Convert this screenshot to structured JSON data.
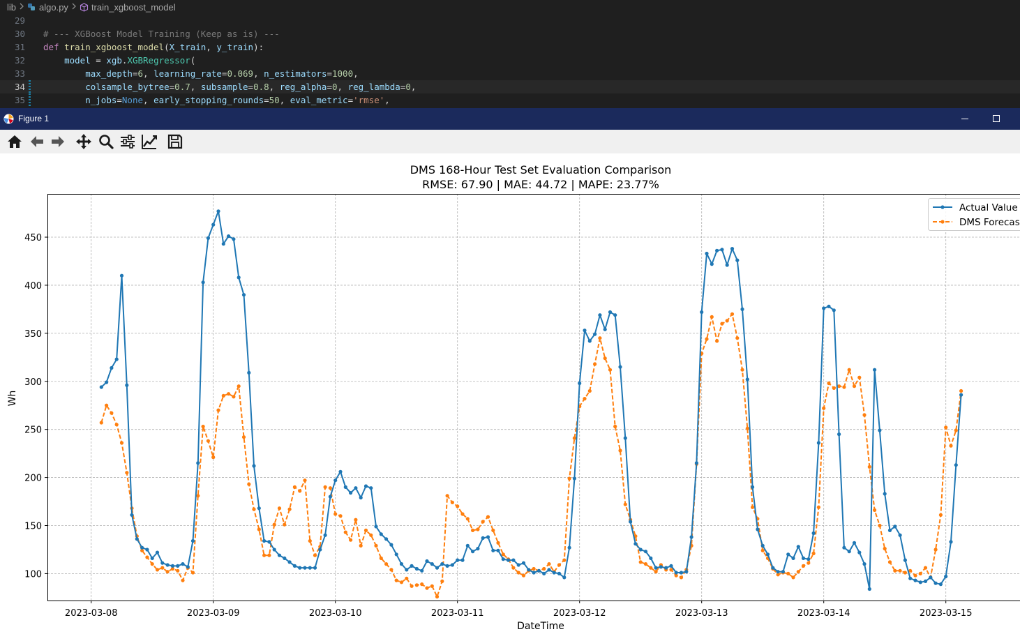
{
  "editor": {
    "breadcrumb": [
      "lib",
      "algo.py",
      "train_xgboost_model"
    ],
    "lines": [
      {
        "num": "29",
        "tokens": []
      },
      {
        "num": "30",
        "tokens": [
          [
            "t-cmtgray",
            "# --- XGBoost Model Training (Keep as is) ---"
          ]
        ]
      },
      {
        "num": "31",
        "tokens": [
          [
            "t-def",
            "def "
          ],
          [
            "t-fn",
            "train_xgboost_model"
          ],
          [
            "t-plain",
            "("
          ],
          [
            "t-param",
            "X_train"
          ],
          [
            "t-plain",
            ", "
          ],
          [
            "t-param",
            "y_train"
          ],
          [
            "t-plain",
            "):"
          ]
        ]
      },
      {
        "num": "32",
        "tokens": [
          [
            "t-plain",
            "    "
          ],
          [
            "t-param",
            "model"
          ],
          [
            "t-plain",
            " = "
          ],
          [
            "t-param",
            "xgb"
          ],
          [
            "t-plain",
            "."
          ],
          [
            "t-cls",
            "XGBRegressor"
          ],
          [
            "t-plain",
            "("
          ]
        ]
      },
      {
        "num": "33",
        "tokens": [
          [
            "t-plain",
            "        "
          ],
          [
            "t-kwarg",
            "max_depth"
          ],
          [
            "t-plain",
            "="
          ],
          [
            "t-num",
            "6"
          ],
          [
            "t-plain",
            ", "
          ],
          [
            "t-kwarg",
            "learning_rate"
          ],
          [
            "t-plain",
            "="
          ],
          [
            "t-num",
            "0.069"
          ],
          [
            "t-plain",
            ", "
          ],
          [
            "t-kwarg",
            "n_estimators"
          ],
          [
            "t-plain",
            "="
          ],
          [
            "t-num",
            "1000"
          ],
          [
            "t-plain",
            ","
          ]
        ]
      },
      {
        "num": "34",
        "active": true,
        "tokens": [
          [
            "t-plain",
            "        "
          ],
          [
            "t-kwarg",
            "colsample_bytree"
          ],
          [
            "t-plain",
            "="
          ],
          [
            "t-num",
            "0.7"
          ],
          [
            "t-plain",
            ", "
          ],
          [
            "t-kwarg",
            "subsample"
          ],
          [
            "t-plain",
            "="
          ],
          [
            "t-num",
            "0.8"
          ],
          [
            "t-plain",
            ", "
          ],
          [
            "t-kwarg",
            "reg_alpha"
          ],
          [
            "t-plain",
            "="
          ],
          [
            "t-num",
            "0"
          ],
          [
            "t-plain",
            ", "
          ],
          [
            "t-kwarg",
            "reg_lambda"
          ],
          [
            "t-plain",
            "="
          ],
          [
            "t-num",
            "0"
          ],
          [
            "t-plain",
            ","
          ]
        ]
      },
      {
        "num": "35",
        "tokens": [
          [
            "t-plain",
            "        "
          ],
          [
            "t-kwarg",
            "n_jobs"
          ],
          [
            "t-plain",
            "="
          ],
          [
            "t-kw",
            "None"
          ],
          [
            "t-plain",
            ", "
          ],
          [
            "t-kwarg",
            "early_stopping_rounds"
          ],
          [
            "t-plain",
            "="
          ],
          [
            "t-num",
            "50"
          ],
          [
            "t-plain",
            ", "
          ],
          [
            "t-kwarg",
            "eval_metric"
          ],
          [
            "t-plain",
            "="
          ],
          [
            "t-str",
            "'rmse'"
          ],
          [
            "t-plain",
            ","
          ]
        ]
      }
    ]
  },
  "figure": {
    "window_title": "Figure 1",
    "toolbar": [
      "home-icon",
      "back-icon",
      "forward-icon",
      "pan-icon",
      "zoom-icon",
      "configure-subplots-icon",
      "edit-axis-icon",
      "save-icon"
    ]
  },
  "colors": {
    "actual": "#1f77b4",
    "forecast": "#ff7f0e",
    "titlebar": "#1b2a5c"
  },
  "chart_data": {
    "type": "line",
    "title": "DMS 168-Hour Test Set Evaluation Comparison",
    "subtitle": "RMSE: 67.90 | MAE: 44.72 | MAPE: 23.77%",
    "xlabel": "DateTime",
    "ylabel": "Wh",
    "x_start": "2023-03-08T02:00",
    "x_step_hours": 1,
    "x_ticks": [
      "2023-03-08",
      "2023-03-09",
      "2023-03-10",
      "2023-03-11",
      "2023-03-12",
      "2023-03-13",
      "2023-03-14",
      "2023-03-15"
    ],
    "y_ticks": [
      100,
      150,
      200,
      250,
      300,
      350,
      400,
      450
    ],
    "ylim": [
      72,
      495
    ],
    "grid": true,
    "legend_position": "top-right",
    "series": [
      {
        "name": "Actual Value",
        "style": "solid",
        "values": [
          294,
          299,
          314,
          323,
          410,
          296,
          161,
          136,
          127,
          125,
          116,
          122,
          111,
          109,
          108,
          108,
          110,
          107,
          134,
          215,
          403,
          449,
          463,
          477,
          443,
          451,
          448,
          408,
          390,
          309,
          212,
          168,
          134,
          133,
          125,
          119,
          116,
          112,
          108,
          106,
          106,
          106,
          106,
          125,
          140,
          180,
          197,
          206,
          190,
          184,
          189,
          179,
          191,
          189,
          149,
          141,
          136,
          130,
          120,
          110,
          104,
          108,
          105,
          103,
          113,
          110,
          106,
          110,
          108,
          109,
          114,
          114,
          129,
          123,
          126,
          137,
          138,
          124,
          124,
          115,
          114,
          114,
          109,
          111,
          104,
          101,
          103,
          100,
          104,
          101,
          100,
          96,
          127,
          199,
          298,
          353,
          342,
          349,
          369,
          354,
          372,
          369,
          315,
          241,
          154,
          131,
          125,
          123,
          116,
          106,
          107,
          106,
          108,
          101,
          101,
          102,
          138,
          215,
          372,
          433,
          422,
          436,
          437,
          421,
          438,
          426,
          375,
          302,
          190,
          146,
          129,
          120,
          106,
          102,
          102,
          120,
          116,
          128,
          116,
          115,
          142,
          236,
          376,
          378,
          374,
          245,
          127,
          123,
          132,
          122,
          110,
          84,
          312,
          249,
          183,
          145,
          149,
          140,
          114,
          95,
          93,
          91,
          92,
          96,
          90,
          89,
          97,
          133,
          213,
          286
        ]
      },
      {
        "name": "DMS Forecast",
        "style": "dashed",
        "values": [
          257,
          275,
          267,
          255,
          236,
          205,
          168,
          139,
          124,
          117,
          110,
          104,
          106,
          102,
          105,
          103,
          93,
          106,
          101,
          181,
          253,
          238,
          221,
          270,
          285,
          287,
          284,
          295,
          242,
          193,
          167,
          146,
          119,
          119,
          151,
          168,
          151,
          167,
          190,
          186,
          197,
          134,
          119,
          128,
          190,
          189,
          162,
          160,
          143,
          135,
          156,
          129,
          145,
          140,
          129,
          116,
          110,
          104,
          93,
          91,
          95,
          87,
          88,
          89,
          85,
          87,
          76,
          92,
          181,
          174,
          170,
          162,
          157,
          145,
          146,
          154,
          159,
          145,
          132,
          120,
          115,
          106,
          101,
          98,
          103,
          105,
          103,
          105,
          110,
          102,
          109,
          114,
          199,
          241,
          274,
          282,
          290,
          318,
          345,
          324,
          312,
          253,
          228,
          172,
          156,
          139,
          112,
          110,
          106,
          102,
          109,
          104,
          104,
          98,
          96,
          104,
          129,
          214,
          329,
          344,
          367,
          342,
          360,
          363,
          370,
          345,
          312,
          251,
          169,
          157,
          124,
          116,
          105,
          99,
          101,
          100,
          96,
          102,
          108,
          111,
          121,
          169,
          272,
          298,
          293,
          295,
          294,
          312,
          295,
          304,
          265,
          211,
          166,
          150,
          126,
          112,
          103,
          103,
          101,
          103,
          98,
          100,
          106,
          96,
          125,
          161,
          252,
          233,
          249,
          290
        ]
      }
    ]
  }
}
